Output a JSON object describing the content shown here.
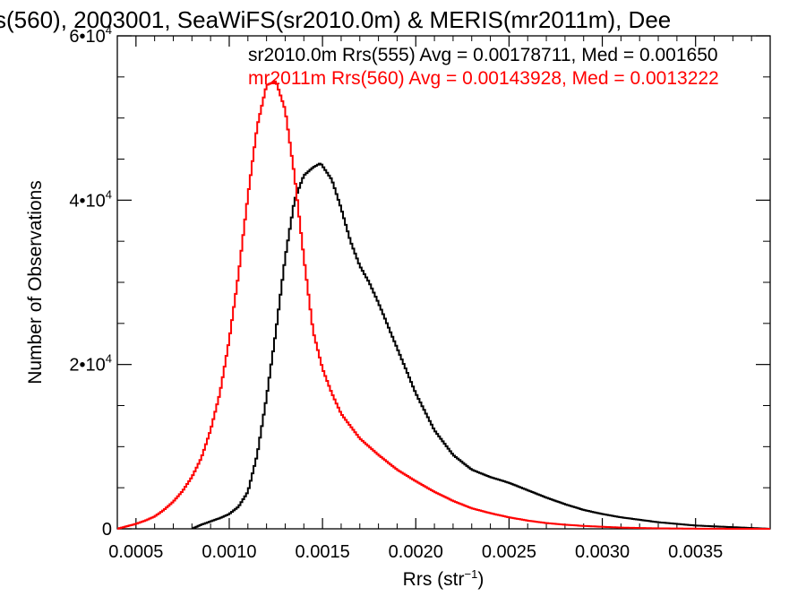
{
  "chart_data": {
    "type": "line",
    "title": "s(560), 2003001, SeaWiFS(sr2010.0m) & MERIS(mr2011m), Dee",
    "xlabel": "Rrs (str",
    "xlabel_sup": "−1",
    "xlabel_close": ")",
    "ylabel": "Number of Observations",
    "xlim": [
      0.0004,
      0.0039
    ],
    "ylim": [
      0,
      60000
    ],
    "xticks": [
      0.0005,
      0.001,
      0.0015,
      0.002,
      0.0025,
      0.003,
      0.0035
    ],
    "xtick_labels": [
      "0.0005",
      "0.0010",
      "0.0015",
      "0.0020",
      "0.0025",
      "0.0030",
      "0.0035"
    ],
    "yticks": [
      {
        "value": 0,
        "mant": "0",
        "exp": ""
      },
      {
        "value": 20000,
        "mant": "2•10",
        "exp": "4"
      },
      {
        "value": 40000,
        "mant": "4•10",
        "exp": "4"
      },
      {
        "value": 60000,
        "mant": "6•10",
        "exp": "4"
      }
    ],
    "step_plot": true,
    "series": [
      {
        "name": "sr2010.0m Rrs(555) Avg = 0.00178711, Med = 0.001650",
        "color": "#000000",
        "x": [
          0.0008,
          0.00085,
          0.0009,
          0.00095,
          0.001,
          0.00105,
          0.0011,
          0.00115,
          0.0012,
          0.00125,
          0.0013,
          0.00135,
          0.0014,
          0.00145,
          0.00149,
          0.00155,
          0.0016,
          0.00165,
          0.0017,
          0.00175,
          0.0018,
          0.0019,
          0.002,
          0.0021,
          0.0022,
          0.0023,
          0.0024,
          0.0025,
          0.0026,
          0.0027,
          0.0028,
          0.0029,
          0.003,
          0.0031,
          0.0032,
          0.0033,
          0.0034,
          0.0035,
          0.0036,
          0.0037,
          0.0038,
          0.0039
        ],
        "y": [
          0,
          500,
          900,
          1300,
          1800,
          2700,
          4500,
          9000,
          16000,
          24000,
          33000,
          40000,
          43000,
          44000,
          44500,
          42500,
          39000,
          35000,
          32000,
          30000,
          27500,
          22000,
          16500,
          12000,
          9000,
          7200,
          6300,
          5600,
          4700,
          3800,
          3000,
          2300,
          1800,
          1400,
          1100,
          800,
          600,
          400,
          300,
          200,
          100,
          0
        ]
      },
      {
        "name": "mr2011m Rrs(560) Avg = 0.00143928, Med = 0.0013222",
        "color": "#ff0000",
        "x": [
          0.0004,
          0.00045,
          0.0005,
          0.00055,
          0.0006,
          0.00065,
          0.0007,
          0.00075,
          0.0008,
          0.00085,
          0.0009,
          0.00095,
          0.001,
          0.00105,
          0.0011,
          0.00115,
          0.0012,
          0.00125,
          0.0013,
          0.00135,
          0.0014,
          0.00145,
          0.0015,
          0.00155,
          0.0016,
          0.0017,
          0.0018,
          0.0019,
          0.002,
          0.0021,
          0.0022,
          0.0023,
          0.0024,
          0.0025,
          0.0026,
          0.0027,
          0.0028,
          0.0029,
          0.003,
          0.0031,
          0.0032,
          0.0033,
          0.0034,
          0.0035,
          0.0036,
          0.0037,
          0.0038,
          0.0039
        ],
        "y": [
          0,
          300,
          600,
          1000,
          1500,
          2300,
          3300,
          4600,
          6300,
          8600,
          12000,
          16500,
          23000,
          31000,
          40500,
          49000,
          54000,
          54500,
          51000,
          43000,
          33000,
          24000,
          19500,
          16500,
          14000,
          11000,
          9000,
          7200,
          5800,
          4500,
          3400,
          2500,
          1900,
          1400,
          1000,
          700,
          500,
          350,
          250,
          150,
          100,
          60,
          40,
          20,
          10,
          5,
          2,
          0
        ]
      }
    ]
  }
}
